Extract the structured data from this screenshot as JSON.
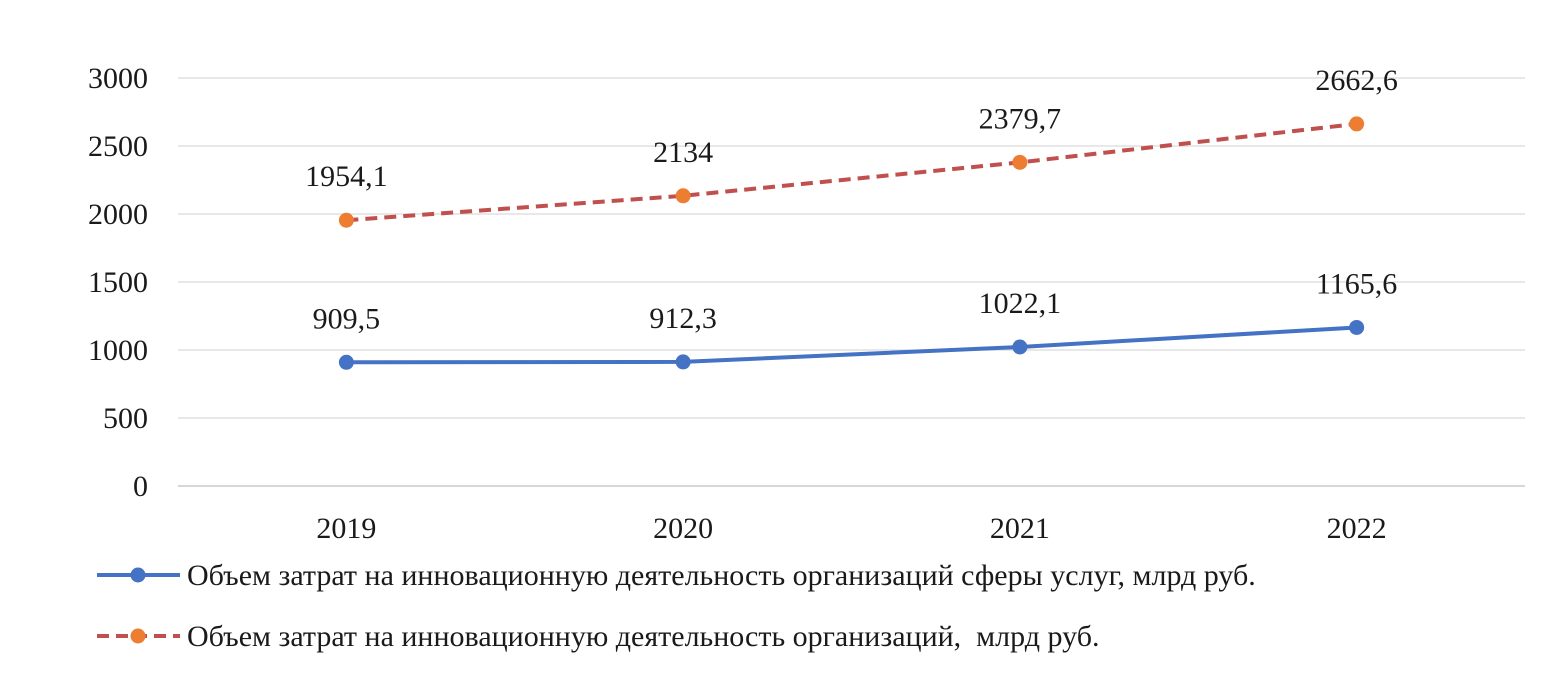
{
  "chart_data": {
    "type": "line",
    "categories": [
      "2019",
      "2020",
      "2021",
      "2022"
    ],
    "ylim": [
      0,
      3000
    ],
    "yticks": [
      0,
      500,
      1000,
      1500,
      2000,
      2500,
      3000
    ],
    "grid": true,
    "legend_position": "bottom",
    "series": [
      {
        "name": "Объем затрат на инновационную деятельность организаций сферы услуг, млрд руб.",
        "values": [
          909.5,
          912.3,
          1022.1,
          1165.6
        ],
        "labels": [
          "909,5",
          "912,3",
          "1022,1",
          "1165,6"
        ],
        "line_color": "#4472C4",
        "marker_color": "#4472C4",
        "line_style": "solid"
      },
      {
        "name": "Объем затрат на инновационную деятельность организаций,  млрд руб.",
        "values": [
          1954.1,
          2134,
          2379.7,
          2662.6
        ],
        "labels": [
          "1954,1",
          "2134",
          "2379,7",
          "2662,6"
        ],
        "line_color": "#C0504D",
        "marker_color": "#ED7D31",
        "line_style": "dashed"
      }
    ]
  }
}
